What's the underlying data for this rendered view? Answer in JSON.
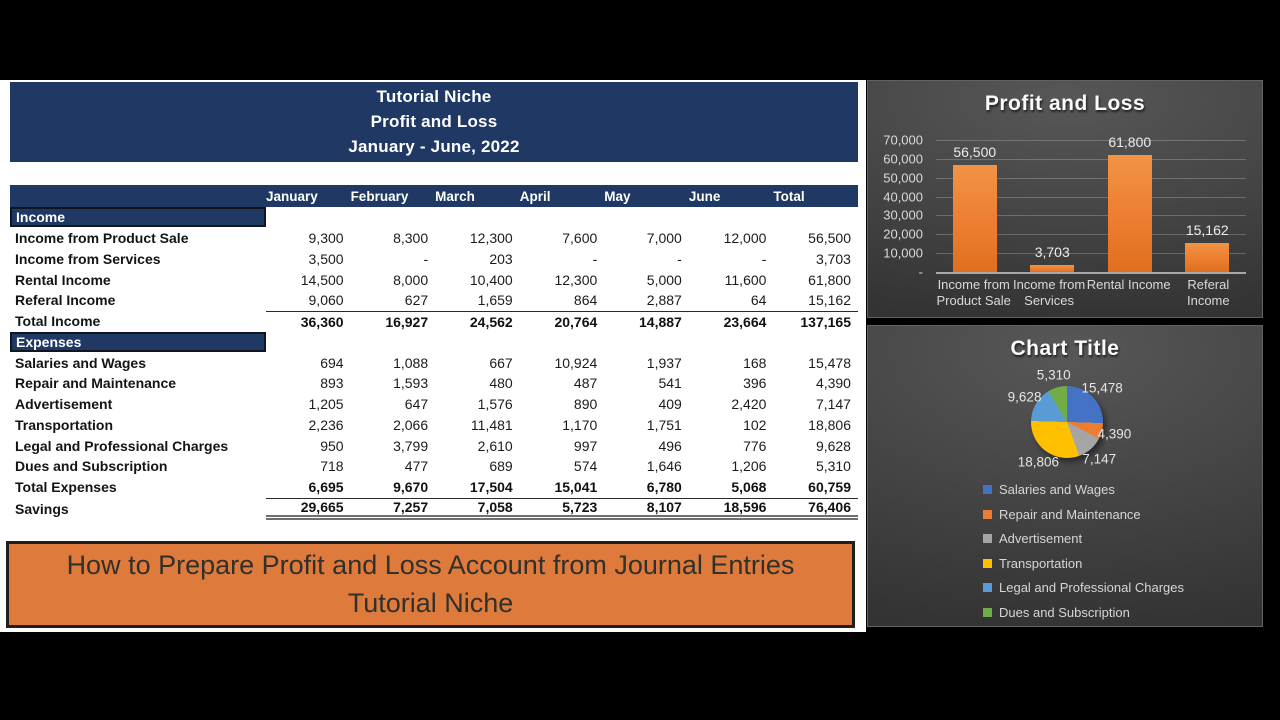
{
  "report": {
    "title_lines": [
      "Tutorial Niche",
      "Profit and Loss",
      "January - June, 2022"
    ]
  },
  "table": {
    "columns": [
      "January",
      "February",
      "March",
      "April",
      "May",
      "June",
      "Total"
    ],
    "sections": [
      {
        "header": "Income",
        "rows": [
          {
            "label": "Income from Product Sale",
            "values": [
              "9,300",
              "8,300",
              "12,300",
              "7,600",
              "7,000",
              "12,000",
              "56,500"
            ]
          },
          {
            "label": "Income from Services",
            "values": [
              "3,500",
              "-",
              "203",
              "-",
              "-",
              "-",
              "3,703"
            ]
          },
          {
            "label": "Rental Income",
            "values": [
              "14,500",
              "8,000",
              "10,400",
              "12,300",
              "5,000",
              "11,600",
              "61,800"
            ]
          },
          {
            "label": "Referal Income",
            "values": [
              "9,060",
              "627",
              "1,659",
              "864",
              "2,887",
              "64",
              "15,162"
            ]
          },
          {
            "label": "Total Income",
            "values": [
              "36,360",
              "16,927",
              "24,562",
              "20,764",
              "14,887",
              "23,664",
              "137,165"
            ],
            "bold": true,
            "border_top": true
          }
        ]
      },
      {
        "header": "Expenses",
        "rows": [
          {
            "label": "Salaries and Wages",
            "values": [
              "694",
              "1,088",
              "667",
              "10,924",
              "1,937",
              "168",
              "15,478"
            ]
          },
          {
            "label": "Repair and Maintenance",
            "values": [
              "893",
              "1,593",
              "480",
              "487",
              "541",
              "396",
              "4,390"
            ]
          },
          {
            "label": "Advertisement",
            "values": [
              "1,205",
              "647",
              "1,576",
              "890",
              "409",
              "2,420",
              "7,147"
            ]
          },
          {
            "label": "Transportation",
            "values": [
              "2,236",
              "2,066",
              "11,481",
              "1,170",
              "1,751",
              "102",
              "18,806"
            ]
          },
          {
            "label": "Legal and Professional Charges",
            "values": [
              "950",
              "3,799",
              "2,610",
              "997",
              "496",
              "776",
              "9,628"
            ]
          },
          {
            "label": "Dues and Subscription",
            "values": [
              "718",
              "477",
              "689",
              "574",
              "1,646",
              "1,206",
              "5,310"
            ]
          },
          {
            "label": "Total Expenses",
            "values": [
              "6,695",
              "9,670",
              "17,504",
              "15,041",
              "6,780",
              "5,068",
              "60,759"
            ],
            "bold": true
          },
          {
            "label": "Savings",
            "values": [
              "29,665",
              "7,257",
              "7,058",
              "5,723",
              "8,107",
              "18,596",
              "76,406"
            ],
            "bold": true,
            "border_top": true,
            "double_bottom": true
          }
        ]
      }
    ]
  },
  "caption": {
    "line1": "How to Prepare Profit and Loss Account from Journal Entries",
    "line2": "Tutorial Niche"
  },
  "colors": {
    "navy": "#1F3864",
    "banner_orange": "#DE7A3B",
    "bar_orange": "#ED7D31",
    "panel_gray": "#404040"
  },
  "chart_data": [
    {
      "type": "bar",
      "title": "Profit and Loss",
      "categories": [
        "Income from Product Sale",
        "Income from Services",
        "Rental Income",
        "Referal Income"
      ],
      "category_lines": [
        [
          "Income from",
          "Product Sale"
        ],
        [
          "Income from",
          "Services"
        ],
        [
          "Rental Income"
        ],
        [
          "Referal",
          "Income"
        ]
      ],
      "values": [
        56500,
        3703,
        61800,
        15162
      ],
      "data_labels": [
        "56,500",
        "3,703",
        "61,800",
        "15,162"
      ],
      "xlabel": "",
      "ylabel": "",
      "ylim": [
        0,
        70000
      ],
      "ytick_labels": [
        "70,000",
        "60,000",
        "50,000",
        "40,000",
        "30,000",
        "20,000",
        "10,000",
        "-"
      ],
      "grid": true,
      "legend_position": "none",
      "bar_color": "#ED7D31"
    },
    {
      "type": "pie",
      "title": "Chart Title",
      "slices": [
        {
          "label": "Salaries and Wages",
          "value": 15478,
          "display": "15,478",
          "color": "#4472C4"
        },
        {
          "label": "Repair and Maintenance",
          "value": 4390,
          "display": "4,390",
          "color": "#ED7D31"
        },
        {
          "label": "Advertisement",
          "value": 7147,
          "display": "7,147",
          "color": "#A5A5A5"
        },
        {
          "label": "Transportation",
          "value": 18806,
          "display": "18,806",
          "color": "#FFC000"
        },
        {
          "label": "Legal and Professional Charges",
          "value": 9628,
          "display": "9,628",
          "color": "#5B9BD5"
        },
        {
          "label": "Dues and Subscription",
          "value": 5310,
          "display": "5,310",
          "color": "#70AD47"
        }
      ],
      "start_angle_deg": 0,
      "legend_position": "bottom-left"
    }
  ]
}
